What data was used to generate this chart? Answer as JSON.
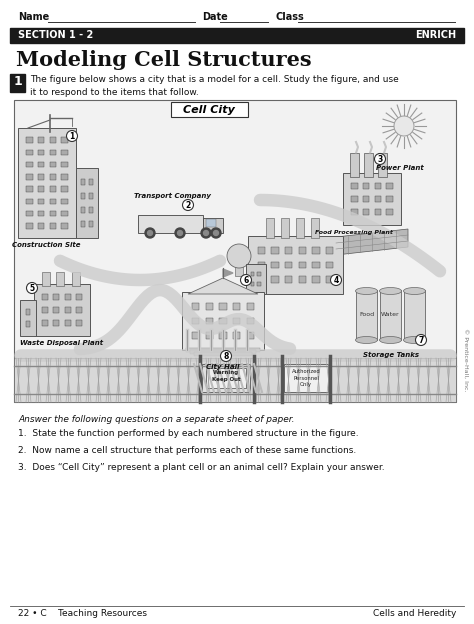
{
  "page_bg": "#ffffff",
  "header_name_label": "Name",
  "header_date_label": "Date",
  "header_class_label": "Class",
  "section_bar_color": "#1a1a1a",
  "section_text": "SECTION 1 - 2",
  "enrich_text": "ENRICH",
  "title": "Modeling Cell Structures",
  "number_box_color": "#1a1a1a",
  "number_box_text": "1",
  "intro_text": "The figure below shows a city that is a model for a cell. Study the figure, and use\nit to respond to the items that follow.",
  "cell_city_label": "Cell City",
  "question_intro": "Answer the following questions on a separate sheet of paper.",
  "questions": [
    "1.  State the function performed by each numbered structure in the figure.",
    "2.  Now name a cell structure that performs each of these same functions.",
    "3.  Does “Cell City” represent a plant cell or an animal cell? Explain your answer."
  ],
  "footer_left": "22 • C    Teaching Resources",
  "footer_right": "Cells and Heredity",
  "copyright": "© Prentice-Hall, Inc.",
  "road_color": "#cccccc",
  "fence_color": "#dddddd",
  "building_light": "#e0e0e0",
  "building_mid": "#d0d0d0",
  "building_dark": "#c8c8c8"
}
